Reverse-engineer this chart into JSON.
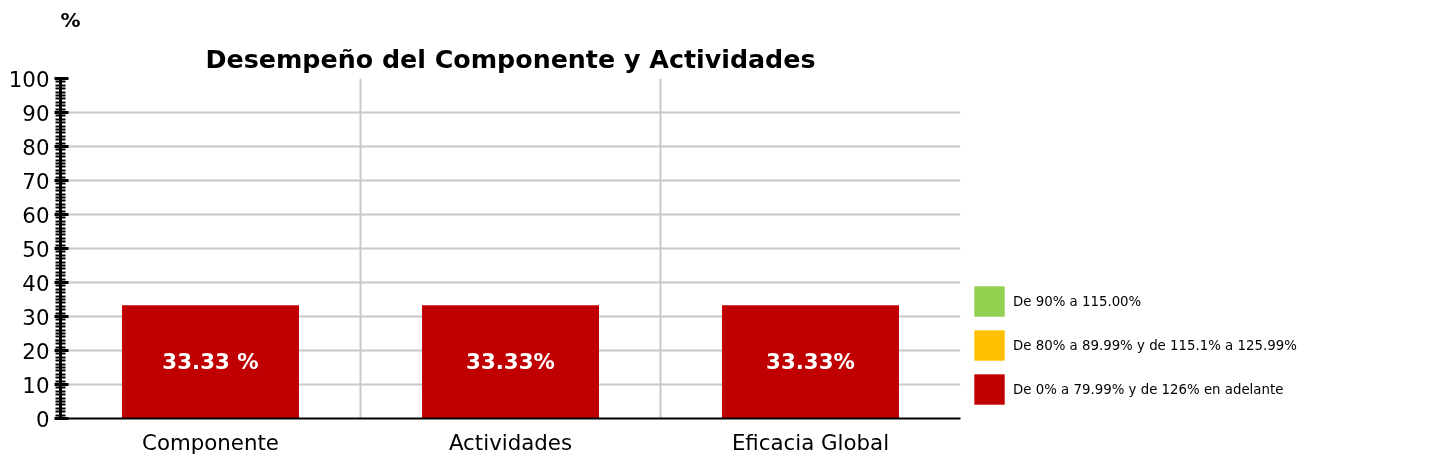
{
  "chart_data": {
    "type": "bar",
    "title": "Desempeño del Componente y Actividades",
    "ylabel": "%",
    "categories": [
      "Componente",
      "Actividades",
      "Eficacia Global"
    ],
    "series": [
      {
        "name": "De 90% a 115.00%",
        "color": "#92d050",
        "values": [
          null,
          null,
          null
        ]
      },
      {
        "name": "De 80% a 89.99% y de 115.1% a 125.99%",
        "color": "#ffc000",
        "values": [
          null,
          null,
          null
        ]
      },
      {
        "name": "De 0% a 79.99% y de 126% en adelante",
        "color": "#c00000",
        "values": [
          33.33,
          33.33,
          33.33
        ],
        "value_labels": [
          "33.33 %",
          "33.33%",
          "33.33%"
        ]
      }
    ],
    "ylim": [
      0,
      100
    ],
    "yticks": [
      0,
      10,
      20,
      30,
      40,
      50,
      60,
      70,
      80,
      90,
      100
    ],
    "grid": true,
    "legend": "right"
  }
}
